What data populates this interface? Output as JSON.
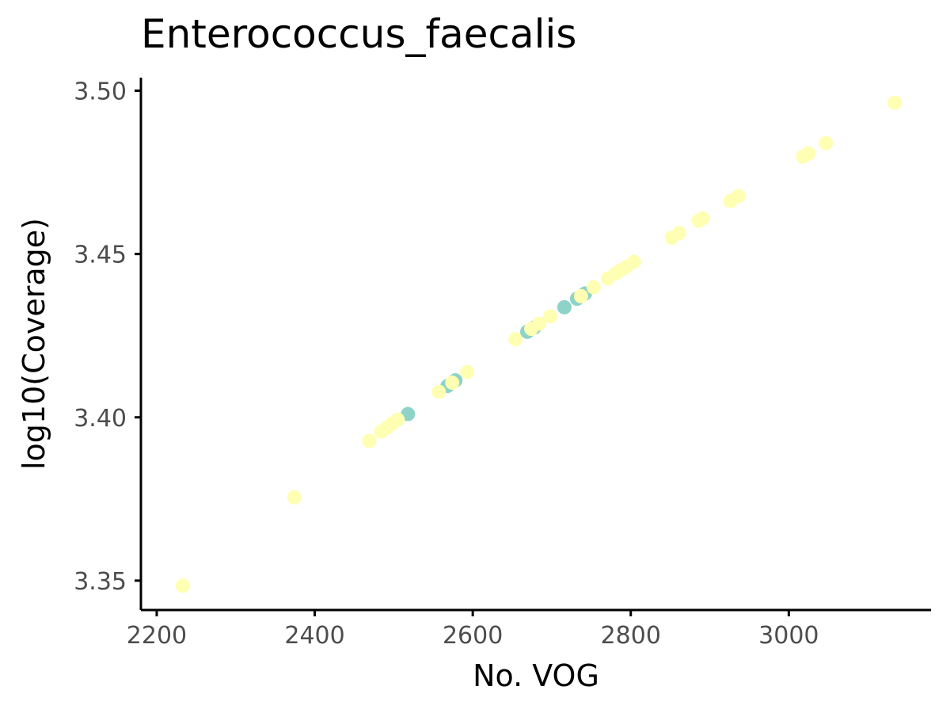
{
  "chart_data": {
    "type": "scatter",
    "title": "Enterococcus_faecalis",
    "xlabel": "No. VOG",
    "ylabel": "log10(Coverage)",
    "xlim": [
      2180,
      3180
    ],
    "ylim": [
      3.341,
      3.504
    ],
    "x_ticks": [
      2200,
      2400,
      2600,
      2800,
      3000
    ],
    "x_tick_labels": [
      "2200",
      "2400",
      "2600",
      "2800",
      "3000"
    ],
    "y_ticks": [
      3.35,
      3.4,
      3.45,
      3.5
    ],
    "y_tick_labels": [
      "3.35",
      "3.40",
      "3.45",
      "3.50"
    ],
    "grid": false,
    "legend": "none",
    "colors": {
      "yellow": "#FFFFB3",
      "teal": "#8DD3C7",
      "axis": "#000000",
      "tick_text": "#4D4D4D"
    },
    "series": [
      {
        "color": "#8DD3C7",
        "points": [
          [
            2518,
            3.401
          ],
          [
            2568,
            3.4096
          ],
          [
            2578,
            3.4113
          ],
          [
            2669,
            3.4262
          ],
          [
            2678,
            3.4275
          ],
          [
            2716,
            3.4337
          ],
          [
            2732,
            3.4363
          ],
          [
            2742,
            3.4379
          ]
        ]
      },
      {
        "color": "#FFFFB3",
        "points": [
          [
            2233,
            3.3484
          ],
          [
            2374,
            3.3755
          ],
          [
            2469,
            3.3928
          ],
          [
            2484,
            3.3956
          ],
          [
            2491,
            3.3968
          ],
          [
            2498,
            3.3981
          ],
          [
            2505,
            3.3993
          ],
          [
            2557,
            3.4078
          ],
          [
            2574,
            3.4106
          ],
          [
            2593,
            3.4139
          ],
          [
            2654,
            3.4239
          ],
          [
            2674,
            3.4271
          ],
          [
            2684,
            3.4287
          ],
          [
            2698,
            3.4309
          ],
          [
            2737,
            3.4371
          ],
          [
            2753,
            3.4398
          ],
          [
            2771,
            3.4425
          ],
          [
            2781,
            3.4441
          ],
          [
            2787,
            3.445
          ],
          [
            2794,
            3.446
          ],
          [
            2804,
            3.4476
          ],
          [
            2852,
            3.455
          ],
          [
            2861,
            3.4564
          ],
          [
            2886,
            3.4602
          ],
          [
            2891,
            3.4609
          ],
          [
            2926,
            3.4662
          ],
          [
            2936,
            3.4677
          ],
          [
            3018,
            3.4798
          ],
          [
            3025,
            3.4808
          ],
          [
            3047,
            3.4839
          ],
          [
            3134,
            3.4963
          ]
        ]
      }
    ]
  }
}
